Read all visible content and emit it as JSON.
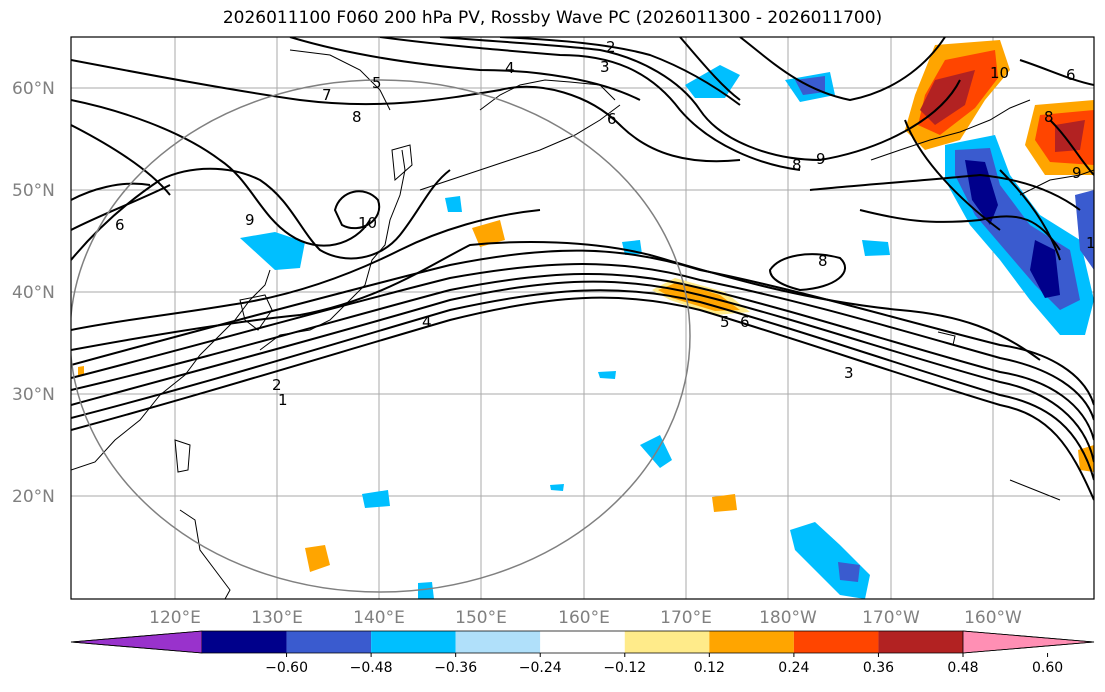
{
  "title": "2026011100 F060 200 hPa PV, Rossby Wave PC (2026011300 - 2026011700)",
  "map": {
    "lat_labels": [
      "60°N",
      "50°N",
      "40°N",
      "30°N",
      "20°N"
    ],
    "lon_labels": [
      "120°E",
      "130°E",
      "140°E",
      "150°E",
      "160°E",
      "170°E",
      "180°W",
      "170°W",
      "160°W"
    ],
    "contour_labels": [
      "2",
      "3",
      "4",
      "5",
      "7",
      "8",
      "6",
      "10",
      "9",
      "8",
      "9",
      "6",
      "9",
      "10",
      "8",
      "4",
      "5",
      "6",
      "3",
      "2",
      "1",
      "6",
      "8",
      "1"
    ]
  },
  "colorbar": {
    "ticks": [
      "−0.60",
      "−0.48",
      "−0.36",
      "−0.24",
      "−0.12",
      "0.12",
      "0.24",
      "0.36",
      "0.48",
      "0.60"
    ],
    "colors": [
      "#9932cc",
      "#00008b",
      "#3a5bcf",
      "#00bfff",
      "#b0e0fa",
      "#ffffff",
      "#ffeb8a",
      "#ffa500",
      "#ff4500",
      "#b22222",
      "#ff8fb4"
    ]
  }
}
